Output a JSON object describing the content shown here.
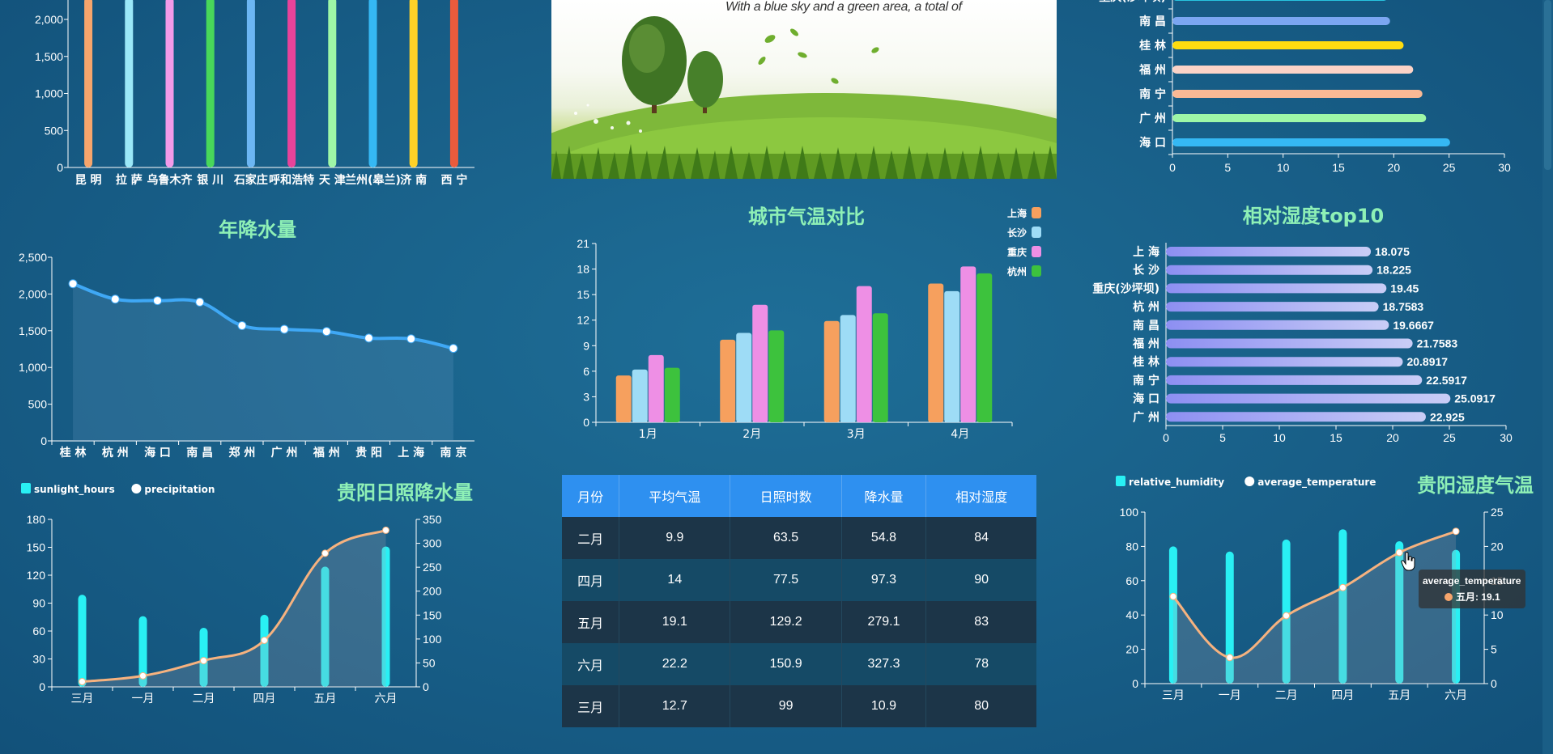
{
  "hero": {
    "caption": "With a blue sky and a green area, a total of"
  },
  "table": {
    "headers": [
      "月份",
      "平均气温",
      "日照时数",
      "降水量",
      "相对湿度"
    ],
    "rows": [
      [
        "二月",
        "9.9",
        "63.5",
        "54.8",
        "84"
      ],
      [
        "四月",
        "14",
        "77.5",
        "97.3",
        "90"
      ],
      [
        "五月",
        "19.1",
        "129.2",
        "279.1",
        "83"
      ],
      [
        "六月",
        "22.2",
        "150.9",
        "327.3",
        "78"
      ],
      [
        "三月",
        "12.7",
        "99",
        "10.9",
        "80"
      ]
    ]
  },
  "tooltip": {
    "title": "average_temperature",
    "value": "五月: 19.1"
  },
  "chart_data": [
    {
      "id": "top-left-bars",
      "type": "bar",
      "title": "",
      "categories": [
        "昆明",
        "拉萨",
        "乌鲁木齐",
        "银川",
        "石家庄",
        "呼和浩特",
        "天津",
        "兰州(皋兰)",
        "济南",
        "西宁"
      ],
      "category_labels": [
        "昆 明",
        "拉 萨",
        "乌鲁木齐",
        "银 川",
        "石家庄",
        "呼和浩特",
        "天 津",
        "兰州(皋兰)",
        "济 南",
        "西 宁"
      ],
      "values": [
        2300,
        2300,
        2300,
        2300,
        2300,
        2300,
        2300,
        2300,
        2300,
        2300
      ],
      "colors": [
        "#f6a56c",
        "#9be8f8",
        "#f29ae8",
        "#48d75a",
        "#6cb6f3",
        "#e8439a",
        "#9ef7a7",
        "#35b8f4",
        "#fed127",
        "#eb5b3c"
      ],
      "yticks": [
        "0",
        "500",
        "1,000",
        "1,500",
        "2,000"
      ],
      "ylim": [
        0,
        2200
      ]
    },
    {
      "id": "annual-precipitation",
      "type": "line",
      "title": "年降水量",
      "categories": [
        "桂林",
        "杭州",
        "海口",
        "南昌",
        "郑州",
        "广州",
        "福州",
        "贵阳",
        "上海",
        "南京"
      ],
      "category_labels": [
        "桂 林",
        "杭 州",
        "海 口",
        "南 昌",
        "郑 州",
        "广 州",
        "福 州",
        "贵 阳",
        "上 海",
        "南 京"
      ],
      "values": [
        2140,
        1930,
        1910,
        1890,
        1570,
        1520,
        1490,
        1400,
        1390,
        1260
      ],
      "yticks": [
        "0",
        "500",
        "1,000",
        "1,500",
        "2,000",
        "2,500"
      ],
      "ylim": [
        0,
        2500
      ],
      "color": "#3fa8f5"
    },
    {
      "id": "city-temperature",
      "type": "bar",
      "title": "城市气温对比",
      "categories": [
        "1月",
        "2月",
        "3月",
        "4月"
      ],
      "series": [
        {
          "name": "上海",
          "values": [
            5.5,
            9.7,
            11.9,
            16.3
          ],
          "color": "#f6a05e"
        },
        {
          "name": "长沙",
          "values": [
            6.2,
            10.5,
            12.6,
            15.4
          ],
          "color": "#9edcf6"
        },
        {
          "name": "重庆",
          "values": [
            7.9,
            13.8,
            16.0,
            18.3
          ],
          "color": "#ee8fe5"
        },
        {
          "name": "杭州",
          "values": [
            6.4,
            10.8,
            12.8,
            17.5
          ],
          "color": "#3dc23d"
        }
      ],
      "yticks": [
        "0",
        "3",
        "6",
        "9",
        "12",
        "15",
        "18",
        "21"
      ],
      "ylim": [
        0,
        21
      ],
      "legend": "right"
    },
    {
      "id": "top-right-bars",
      "type": "bar",
      "title": "",
      "orientation": "horizontal",
      "categories": [
        "海口",
        "广州",
        "南宁",
        "福州",
        "桂林",
        "南昌",
        "重庆(沙坪坝)"
      ],
      "category_labels": [
        "海 口",
        "广 州",
        "南 宁",
        "福 州",
        "桂 林",
        "南 昌",
        "重庆(沙坪坝)"
      ],
      "values": [
        25.0917,
        22.925,
        22.5917,
        21.7583,
        20.8917,
        19.6667,
        19.45
      ],
      "colors": [
        "#35b8f4",
        "#9ef7a7",
        "#f9b995",
        "#fbd3c7",
        "#fedc10",
        "#7ba6f1",
        "#27c5e0"
      ],
      "xticks": [
        "0",
        "5",
        "10",
        "15",
        "20",
        "25",
        "30"
      ],
      "xlim": [
        0,
        30
      ]
    },
    {
      "id": "humidity-top10",
      "type": "bar",
      "title": "相对湿度top10",
      "orientation": "horizontal",
      "categories": [
        "上海",
        "长沙",
        "重庆(沙坪坝)",
        "杭州",
        "南昌",
        "福州",
        "桂林",
        "南宁",
        "海口",
        "广州"
      ],
      "category_labels": [
        "上 海",
        "长 沙",
        "重庆(沙坪坝)",
        "杭 州",
        "南 昌",
        "福 州",
        "桂 林",
        "南 宁",
        "海 口",
        "广 州"
      ],
      "values": [
        18.075,
        18.225,
        19.45,
        18.7583,
        19.6667,
        21.7583,
        20.8917,
        22.5917,
        25.0917,
        22.925
      ],
      "value_labels": [
        "18.075",
        "18.225",
        "19.45",
        "18.7583",
        "19.6667",
        "21.7583",
        "20.8917",
        "22.5917",
        "25.0917",
        "22.925"
      ],
      "xticks": [
        "0",
        "5",
        "10",
        "15",
        "20",
        "25",
        "30"
      ],
      "xlim": [
        0,
        30
      ]
    },
    {
      "id": "guiyang-sun-rain",
      "type": "bar",
      "title": "贵阳日照降水量",
      "categories": [
        "三月",
        "一月",
        "二月",
        "四月",
        "五月",
        "六月"
      ],
      "series": [
        {
          "name": "sunlight_hours",
          "type": "bar",
          "values": [
            99,
            76,
            63.5,
            77.5,
            129.2,
            150.9
          ],
          "color": "#29f0f4"
        },
        {
          "name": "precipitation",
          "type": "line",
          "values": [
            10.9,
            23,
            54.8,
            97.3,
            279.1,
            327.3
          ],
          "color": "#f6b27f"
        }
      ],
      "yticks_left": [
        "0",
        "30",
        "60",
        "90",
        "120",
        "150",
        "180"
      ],
      "ylim_left": [
        0,
        180
      ],
      "yticks_right": [
        "0",
        "50",
        "100",
        "150",
        "200",
        "250",
        "300",
        "350"
      ],
      "ylim_right": [
        0,
        350
      ]
    },
    {
      "id": "guiyang-humidity-temp",
      "type": "bar",
      "title": "贵阳湿度气温",
      "categories": [
        "三月",
        "一月",
        "二月",
        "四月",
        "五月",
        "六月"
      ],
      "series": [
        {
          "name": "relative_humidity",
          "type": "bar",
          "values": [
            80,
            77,
            84,
            90,
            83,
            78
          ],
          "color": "#29f0f4"
        },
        {
          "name": "average_temperature",
          "type": "line",
          "values": [
            12.7,
            3.8,
            9.9,
            14,
            19.1,
            22.2
          ],
          "color": "#f6b27f"
        }
      ],
      "yticks_left": [
        "0",
        "20",
        "40",
        "60",
        "80",
        "100"
      ],
      "ylim_left": [
        0,
        100
      ],
      "yticks_right": [
        "0",
        "5",
        "10",
        "15",
        "20",
        "25"
      ],
      "ylim_right": [
        0,
        25
      ]
    }
  ]
}
